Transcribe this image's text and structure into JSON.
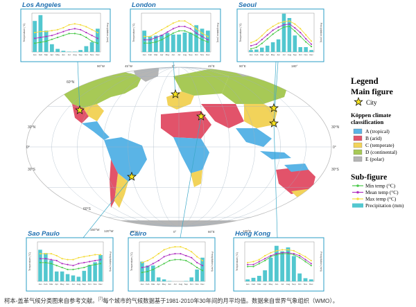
{
  "legend": {
    "title": "Legend",
    "main_title": "Main figure",
    "city_label": "City",
    "koppen_title_1": "Köppen climate",
    "koppen_title_2": "classification",
    "classes": [
      {
        "label": "A (tropical)",
        "color": "#5ab4e6"
      },
      {
        "label": "B (arid)",
        "color": "#e2536a"
      },
      {
        "label": "C (temperate)",
        "color": "#f2d35a"
      },
      {
        "label": "D (continental)",
        "color": "#a7c956"
      },
      {
        "label": "E (polar)",
        "color": "#b5b5b5"
      }
    ],
    "sub_title": "Sub-figure",
    "series": [
      {
        "label": "Min temp (°C)",
        "color": "#4ac94a"
      },
      {
        "label": "Mean temp (°C)",
        "color": "#b030c0"
      },
      {
        "label": "Max temp (°C)",
        "color": "#f4dc3c"
      },
      {
        "label": "Precipitation (mm)",
        "color": "#52c7cf"
      }
    ]
  },
  "caption": "柯本-盖革气候分类图来自参考文献。",
  "caption_sup": "[7]",
  "caption_rest": "每个城市的气候数据基于1981-2010年30年间的月平均值。数据来自世界气象组织（WMO）。",
  "map_labels": {
    "lat": [
      "60°N",
      "30°N",
      "0°",
      "30°S",
      "60°S",
      "30°N",
      "0°",
      "30°S"
    ],
    "lon": [
      "90°W",
      "45°W",
      "0°",
      "45°E",
      "90°E",
      "180°",
      "150°W",
      "120°W",
      "60°W",
      "0°",
      "60°E",
      "120°E"
    ]
  },
  "chart_data": [
    {
      "type": "bar",
      "city": "Los Angeles",
      "title": "Los Angeles",
      "categories": [
        "Jan",
        "Feb",
        "Mar",
        "Apr",
        "May",
        "Jun",
        "Jul",
        "Aug",
        "Sep",
        "Oct",
        "Nov",
        "Dec"
      ],
      "ylabel_left": "Temperature (°C)",
      "ylabel_right": "Precipitation (mm)",
      "temp_lim": [
        0,
        40
      ],
      "precip_lim": [
        0,
        100
      ],
      "series": [
        {
          "name": "Min temp (°C)",
          "kind": "line",
          "values": [
            9,
            10,
            11,
            13,
            15,
            17,
            19,
            19,
            18,
            15,
            11,
            9
          ]
        },
        {
          "name": "Mean temp (°C)",
          "kind": "line",
          "values": [
            14,
            15,
            16,
            17,
            19,
            21,
            23,
            24,
            23,
            20,
            17,
            14
          ]
        },
        {
          "name": "Max temp (°C)",
          "kind": "line",
          "values": [
            20,
            21,
            21,
            22,
            23,
            25,
            28,
            29,
            28,
            26,
            23,
            20
          ]
        },
        {
          "name": "Precipitation (mm)",
          "kind": "bar",
          "values": [
            80,
            95,
            55,
            20,
            8,
            3,
            1,
            1,
            5,
            15,
            25,
            60
          ]
        }
      ]
    },
    {
      "type": "bar",
      "city": "London",
      "title": "London",
      "categories": [
        "Jan",
        "Feb",
        "Mar",
        "Apr",
        "May",
        "Jun",
        "Jul",
        "Aug",
        "Sep",
        "Oct",
        "Nov",
        "Dec"
      ],
      "ylabel_left": "Temperature (°C)",
      "ylabel_right": "Precipitation (mm)",
      "temp_lim": [
        -5,
        30
      ],
      "precip_lim": [
        0,
        100
      ],
      "series": [
        {
          "name": "Min temp (°C)",
          "kind": "line",
          "values": [
            3,
            3,
            4,
            6,
            9,
            12,
            14,
            14,
            12,
            9,
            6,
            4
          ]
        },
        {
          "name": "Mean temp (°C)",
          "kind": "line",
          "values": [
            6,
            6,
            8,
            10,
            13,
            16,
            18,
            18,
            16,
            12,
            9,
            6
          ]
        },
        {
          "name": "Max temp (°C)",
          "kind": "line",
          "values": [
            9,
            9,
            12,
            15,
            18,
            21,
            23,
            23,
            20,
            16,
            12,
            9
          ]
        },
        {
          "name": "Precipitation (mm)",
          "kind": "bar",
          "values": [
            55,
            40,
            42,
            44,
            49,
            45,
            45,
            50,
            49,
            69,
            60,
            55
          ]
        }
      ]
    },
    {
      "type": "bar",
      "city": "Seoul",
      "title": "Seoul",
      "categories": [
        "Jan",
        "Feb",
        "Mar",
        "Apr",
        "May",
        "Jun",
        "Jul",
        "Aug",
        "Sep",
        "Oct",
        "Nov",
        "Dec"
      ],
      "ylabel_left": "Temperature (°C)",
      "ylabel_right": "Precipitation (mm)",
      "temp_lim": [
        -10,
        40
      ],
      "precip_lim": [
        0,
        400
      ],
      "series": [
        {
          "name": "Min temp (°C)",
          "kind": "line",
          "values": [
            -6,
            -4,
            1,
            7,
            13,
            18,
            22,
            23,
            17,
            10,
            3,
            -3
          ]
        },
        {
          "name": "Mean temp (°C)",
          "kind": "line",
          "values": [
            -2,
            0,
            6,
            12,
            18,
            22,
            25,
            26,
            21,
            15,
            7,
            0
          ]
        },
        {
          "name": "Max temp (°C)",
          "kind": "line",
          "values": [
            2,
            5,
            11,
            18,
            23,
            27,
            29,
            30,
            26,
            20,
            12,
            4
          ]
        },
        {
          "name": "Precipitation (mm)",
          "kind": "bar",
          "values": [
            20,
            25,
            45,
            65,
            100,
            130,
            395,
            350,
            170,
            50,
            50,
            20
          ]
        }
      ]
    },
    {
      "type": "bar",
      "city": "Sao Paulo",
      "title": "Sao Paulo",
      "categories": [
        "Jan",
        "Feb",
        "Mar",
        "Apr",
        "May",
        "Jun",
        "Jul",
        "Aug",
        "Sep",
        "Oct",
        "Nov",
        "Dec"
      ],
      "ylabel_left": "Temperature (°C)",
      "ylabel_right": "Precipitation (mm)",
      "temp_lim": [
        0,
        40
      ],
      "precip_lim": [
        0,
        300
      ],
      "series": [
        {
          "name": "Min temp (°C)",
          "kind": "line",
          "values": [
            19,
            19,
            18,
            16,
            14,
            12,
            12,
            13,
            14,
            16,
            17,
            18
          ]
        },
        {
          "name": "Mean temp (°C)",
          "kind": "line",
          "values": [
            23,
            23,
            22,
            21,
            18,
            17,
            16,
            18,
            19,
            20,
            21,
            22
          ]
        },
        {
          "name": "Max temp (°C)",
          "kind": "line",
          "values": [
            28,
            28,
            28,
            26,
            23,
            22,
            22,
            24,
            25,
            26,
            27,
            27
          ]
        },
        {
          "name": "Precipitation (mm)",
          "kind": "bar",
          "values": [
            240,
            215,
            160,
            75,
            75,
            55,
            45,
            35,
            80,
            125,
            145,
            200
          ]
        }
      ]
    },
    {
      "type": "bar",
      "city": "Cairo",
      "title": "Cairo",
      "categories": [
        "Jan",
        "Feb",
        "Mar",
        "Apr",
        "May",
        "Jun",
        "Jul",
        "Aug",
        "Sep",
        "Oct",
        "Nov",
        "Dec"
      ],
      "ylabel_left": "Temperature (°C)",
      "ylabel_right": "Precipitation (mm)",
      "temp_lim": [
        0,
        40
      ],
      "precip_lim": [
        0,
        10
      ],
      "series": [
        {
          "name": "Min temp (°C)",
          "kind": "line",
          "values": [
            9,
            10,
            12,
            15,
            18,
            21,
            22,
            22,
            21,
            18,
            14,
            11
          ]
        },
        {
          "name": "Mean temp (°C)",
          "kind": "line",
          "values": [
            14,
            15,
            18,
            21,
            25,
            27,
            28,
            28,
            26,
            24,
            19,
            16
          ]
        },
        {
          "name": "Max temp (°C)",
          "kind": "line",
          "values": [
            19,
            21,
            24,
            28,
            32,
            34,
            35,
            35,
            33,
            30,
            25,
            21
          ]
        },
        {
          "name": "Precipitation (mm)",
          "kind": "bar",
          "values": [
            5,
            4,
            4,
            1,
            0.5,
            0.1,
            0,
            0,
            0.1,
            1,
            3,
            6
          ]
        }
      ]
    },
    {
      "type": "bar",
      "city": "Hong Kong",
      "title": "Hong Kong",
      "categories": [
        "Jan",
        "Feb",
        "Mar",
        "Apr",
        "May",
        "Jun",
        "Jul",
        "Aug",
        "Sep",
        "Oct",
        "Nov",
        "Dec"
      ],
      "ylabel_left": "Temperature (°C)",
      "ylabel_right": "Precipitation (mm)",
      "temp_lim": [
        0,
        40
      ],
      "precip_lim": [
        0,
        500
      ],
      "series": [
        {
          "name": "Min temp (°C)",
          "kind": "line",
          "values": [
            15,
            15,
            18,
            21,
            25,
            27,
            28,
            28,
            27,
            24,
            20,
            16
          ]
        },
        {
          "name": "Mean temp (°C)",
          "kind": "line",
          "values": [
            17,
            17,
            20,
            23,
            26,
            28,
            29,
            29,
            28,
            26,
            22,
            18
          ]
        },
        {
          "name": "Max temp (°C)",
          "kind": "line",
          "values": [
            19,
            20,
            22,
            26,
            29,
            31,
            32,
            32,
            31,
            28,
            25,
            21
          ]
        },
        {
          "name": "Precipitation (mm)",
          "kind": "bar",
          "values": [
            25,
            45,
            70,
            140,
            300,
            450,
            380,
            430,
            320,
            100,
            40,
            25
          ]
        }
      ]
    }
  ]
}
